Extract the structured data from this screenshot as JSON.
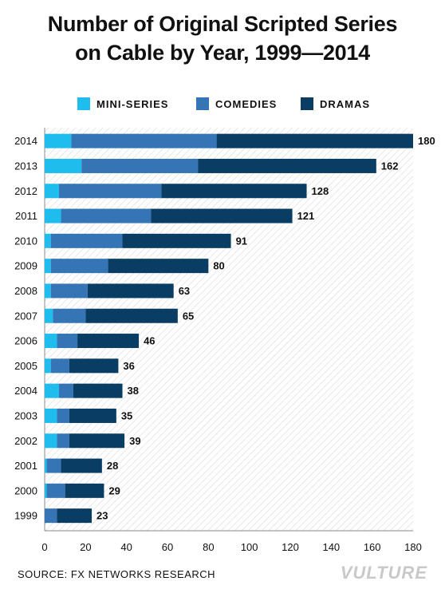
{
  "title_lines": [
    "Number of Original Scripted Series",
    "on Cable by Year, 1999—2014"
  ],
  "source": "SOURCE: FX NETWORKS RESEARCH",
  "brand": "VULTURE",
  "colors": {
    "mini": "#1fbcee",
    "comedies": "#3574b5",
    "dramas": "#0a3d63",
    "hatch": "#d8d8d8"
  },
  "chart_data": {
    "type": "bar",
    "orientation": "horizontal",
    "stacked": true,
    "title": "Number of Original Scripted Series on Cable by Year, 1999—2014",
    "categories": [
      "2014",
      "2013",
      "2012",
      "2011",
      "2010",
      "2009",
      "2008",
      "2007",
      "2006",
      "2005",
      "2004",
      "2003",
      "2002",
      "2001",
      "2000",
      "1999"
    ],
    "series": [
      {
        "name": "MINI-SERIES",
        "color": "#1fbcee",
        "values": [
          13,
          18,
          7,
          8,
          3,
          3,
          3,
          4,
          6,
          3,
          7,
          6,
          6,
          1,
          1,
          0
        ]
      },
      {
        "name": "COMEDIES",
        "color": "#3574b5",
        "values": [
          71,
          57,
          50,
          44,
          35,
          28,
          18,
          16,
          10,
          9,
          7,
          6,
          6,
          7,
          9,
          6
        ]
      },
      {
        "name": "DRAMAS",
        "color": "#0a3d63",
        "values": [
          96,
          87,
          71,
          69,
          53,
          49,
          42,
          45,
          30,
          24,
          24,
          23,
          27,
          20,
          19,
          17
        ]
      }
    ],
    "totals": [
      180,
      162,
      128,
      121,
      91,
      80,
      63,
      65,
      46,
      36,
      38,
      35,
      39,
      28,
      29,
      23
    ],
    "xlim": [
      0,
      180
    ],
    "xticks": [
      0,
      20,
      40,
      60,
      80,
      100,
      120,
      140,
      160,
      180
    ],
    "legend": "top"
  }
}
